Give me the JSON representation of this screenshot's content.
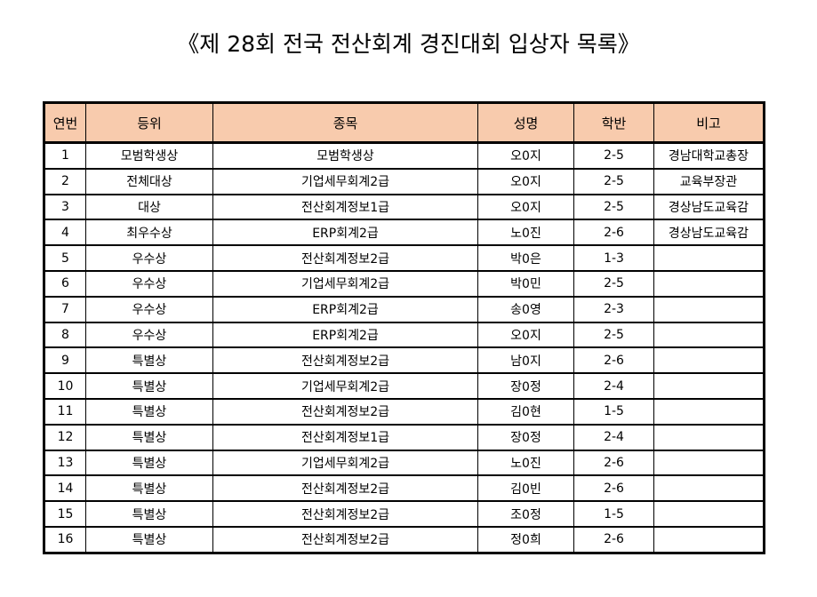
{
  "title": "《제 28회 전국 전산회계 경진대회 입상자 목록》",
  "table": {
    "headers": [
      "연번",
      "등위",
      "종목",
      "성명",
      "학반",
      "비고"
    ],
    "rows": [
      [
        "1",
        "모범학생상",
        "모범학생상",
        "오0지",
        "2-5",
        "경남대학교총장"
      ],
      [
        "2",
        "전체대상",
        "기업세무회계2급",
        "오0지",
        "2-5",
        "교육부장관"
      ],
      [
        "3",
        "대상",
        "전산회계정보1급",
        "오0지",
        "2-5",
        "경상남도교육감"
      ],
      [
        "4",
        "최우수상",
        "ERP회계2급",
        "노0진",
        "2-6",
        "경상남도교육감"
      ],
      [
        "5",
        "우수상",
        "전산회계정보2급",
        "박0은",
        "1-3",
        ""
      ],
      [
        "6",
        "우수상",
        "기업세무회계2급",
        "박0민",
        "2-5",
        ""
      ],
      [
        "7",
        "우수상",
        "ERP회계2급",
        "송0영",
        "2-3",
        ""
      ],
      [
        "8",
        "우수상",
        "ERP회계2급",
        "오0지",
        "2-5",
        ""
      ],
      [
        "9",
        "특별상",
        "전산회계정보2급",
        "남0지",
        "2-6",
        ""
      ],
      [
        "10",
        "특별상",
        "기업세무회계2급",
        "장0정",
        "2-4",
        ""
      ],
      [
        "11",
        "특별상",
        "전산회계정보2급",
        "김0현",
        "1-5",
        ""
      ],
      [
        "12",
        "특별상",
        "전산회계정보1급",
        "장0정",
        "2-4",
        ""
      ],
      [
        "13",
        "특별상",
        "기업세무회계2급",
        "노0진",
        "2-6",
        ""
      ],
      [
        "14",
        "특별상",
        "전산회계정보2급",
        "김0빈",
        "2-6",
        ""
      ],
      [
        "15",
        "특별상",
        "전산회계정보2급",
        "조0정",
        "1-5",
        ""
      ],
      [
        "16",
        "특별상",
        "전산회계정보2급",
        "정0희",
        "2-6",
        ""
      ]
    ]
  },
  "colors": {
    "header_bg": "#f8cbad"
  }
}
